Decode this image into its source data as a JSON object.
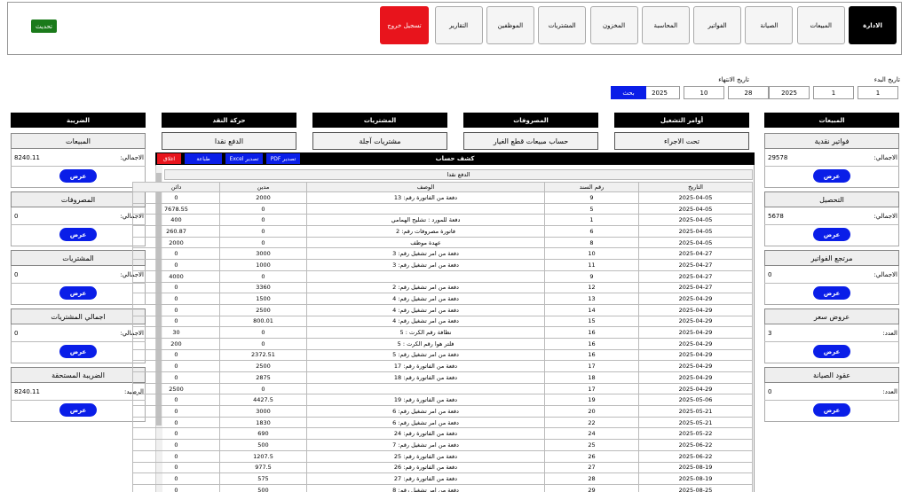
{
  "nav": {
    "tabs": [
      "الادارة",
      "المبيعات",
      "الصيانة",
      "الفواتير",
      "المحاسبة",
      "المخزون",
      "المشتريات",
      "الموظفين",
      "التقارير"
    ],
    "logout": "تسجيل خروج",
    "refresh": "تحديث"
  },
  "filters": {
    "start_label": "تاريخ البدء",
    "start": [
      "1",
      "1",
      "2025"
    ],
    "end_label": "تاريخ الانتهاء",
    "end": [
      "28",
      "10",
      "2025"
    ],
    "search": "بحث"
  },
  "columns": [
    "المبيعات",
    "أوامر التشغيل",
    "المصروفات",
    "المشتريات",
    "حركة النقد",
    "الضريبة"
  ],
  "sub_buttons": [
    "تحت الاجراء",
    "حساب مبيعات قطع الغيار",
    "مشتريات آجلة",
    "الدفع نقدا"
  ],
  "right_cards": [
    {
      "title": "فواتير نقدية",
      "label": "الاجمالي:",
      "value": 29578,
      "button": "عرض"
    },
    {
      "title": "التحصيل",
      "label": "الاجمالي:",
      "value": 5678,
      "button": "عرض"
    },
    {
      "title": "مرتجع الفواتير",
      "label": "الاجمالي:",
      "value": 0,
      "button": "عرض"
    },
    {
      "title": "عروض سعر",
      "label": "العدد:",
      "value": 3,
      "button": "عرض"
    },
    {
      "title": "عقود الصيانة",
      "label": "العدد:",
      "value": 0,
      "button": "عرض"
    }
  ],
  "left_cards": [
    {
      "title": "المبيعات",
      "label": "الاجمالي:",
      "value": 8240.11,
      "button": "عرض"
    },
    {
      "title": "المصروفات",
      "label": "الاجمالي:",
      "value": 0,
      "button": "عرض"
    },
    {
      "title": "المشتريات",
      "label": "الاجمالي:",
      "value": 0,
      "button": "عرض"
    },
    {
      "title": "اجمالي المشتريات",
      "label": "الاجمالي:",
      "value": 0,
      "button": "عرض"
    },
    {
      "title": "الضريبة المستحقة",
      "label": "الرصيد:",
      "value": 8240.11,
      "button": "عرض"
    }
  ],
  "modal": {
    "title": "كشف حساب",
    "buttons": [
      "اغلاق",
      "طباعة",
      "تصدير Excel",
      "تصدير PDF"
    ],
    "subtitle": "الدفع نقدا",
    "columns": [
      "التاريخ",
      "رقم السند",
      "الوصف",
      "مدين",
      "دائن"
    ],
    "rows": [
      [
        "2025-04-05",
        9,
        "دفعة من الفاتورة رقم: 13",
        2000,
        0
      ],
      [
        "2025-04-05",
        5,
        null,
        0,
        7678.55
      ],
      [
        "2025-04-05",
        1,
        "دفعة للمورد : تشليح الهمامي",
        0,
        400
      ],
      [
        "2025-04-05",
        6,
        "فاتورة مصروفات رقم: 2",
        0,
        260.87
      ],
      [
        "2025-04-05",
        8,
        "عهدة موظف",
        0,
        2000
      ],
      [
        "2025-04-27",
        10,
        "دفعة من امر تشغيل رقم: 3",
        3000,
        0
      ],
      [
        "2025-04-27",
        11,
        "دفعة من امر تشغيل رقم: 3",
        1000,
        0
      ],
      [
        "2025-04-27",
        9,
        null,
        0,
        4000
      ],
      [
        "2025-04-27",
        12,
        "دفعة من امر تشغيل رقم: 2",
        3360,
        0
      ],
      [
        "2025-04-29",
        13,
        "دفعة من امر تشغيل رقم: 4",
        1500,
        0
      ],
      [
        "2025-04-29",
        14,
        "دفعة من امر تشغيل رقم: 4",
        2500,
        0
      ],
      [
        "2025-04-29",
        15,
        "دفعة من امر تشغيل رقم: 4",
        800.01,
        0
      ],
      [
        "2025-04-29",
        16,
        "نظافة رقم الكرت : 5",
        0,
        30
      ],
      [
        "2025-04-29",
        16,
        "فلتر هوا رقم الكرت : 5",
        0,
        200
      ],
      [
        "2025-04-29",
        16,
        "دفعة من امر تشغيل رقم: 5",
        2372.51,
        0
      ],
      [
        "2025-04-29",
        17,
        "دفعة من الفاتورة رقم: 17",
        2500,
        0
      ],
      [
        "2025-04-29",
        18,
        "دفعة من الفاتورة رقم: 18",
        2875,
        0
      ],
      [
        "2025-04-29",
        17,
        null,
        0,
        2500
      ],
      [
        "2025-05-06",
        19,
        "دفعة من الفاتورة رقم: 19",
        4427.5,
        0
      ],
      [
        "2025-05-21",
        20,
        "دفعة من امر تشغيل رقم: 6",
        3000,
        0
      ],
      [
        "2025-05-21",
        22,
        "دفعة من امر تشغيل رقم: 6",
        1830,
        0
      ],
      [
        "2025-05-22",
        24,
        "دفعة من الفاتورة رقم: 24",
        690,
        0
      ],
      [
        "2025-06-22",
        25,
        "دفعة من امر تشغيل رقم: 7",
        500,
        0
      ],
      [
        "2025-06-22",
        26,
        "دفعة من الفاتورة رقم: 25",
        1207.5,
        0
      ],
      [
        "2025-08-19",
        27,
        "دفعة من الفاتورة رقم: 26",
        977.5,
        0
      ],
      [
        "2025-08-19",
        28,
        "دفعة من الفاتورة رقم: 27",
        575,
        0
      ],
      [
        "2025-08-25",
        29,
        "دفعة من امر تشغيل رقم: 8",
        500,
        0
      ]
    ]
  }
}
